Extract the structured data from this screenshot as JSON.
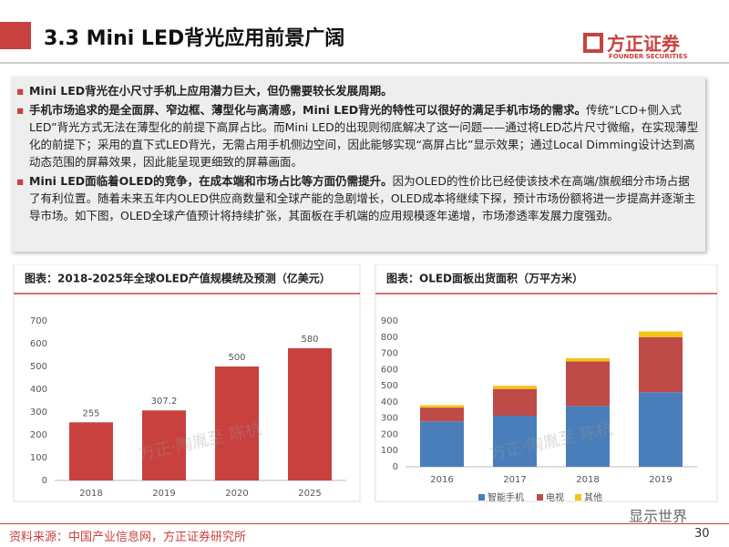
{
  "header": {
    "title": "3.3 Mini LED背光应用前景广阔",
    "logo": "方正证券",
    "logo_sub": "FOUNDER SECURITIES"
  },
  "bullets": [
    {
      "bold": "Mini LED背光在小尺寸手机上应用潜力巨大，但仍需要较长发展周期。",
      "text": ""
    },
    {
      "bold": "手机市场追求的是全面屏、窄边框、薄型化与高清感，Mini LED背光的特性可以很好的满足手机市场的需求。",
      "text": "传统“LCD+侧入式LED”背光方式无法在薄型化的前提下高屏占比。而Mini LED的出现则彻底解决了这一问题——通过将LED芯片尺寸微缩，在实现薄型化的前提下；采用的直下式LED背光，无需占用手机侧边空间，因此能够实现“高屏占比”显示效果；通过Local Dimming设计达到高动态范围的屏幕效果，因此能呈现更细致的屏幕画面。"
    },
    {
      "bold": "Mini LED面临着OLED的竞争，在成本端和市场占比等方面仍需提升。",
      "text": "因为OLED的性价比已经使该技术在高端/旗舰细分市场占据了有利位置。随着未来五年内OLED供应商数量和全球产能的急剧增长，OLED成本将继续下探，预计市场份额将进一步提高并逐渐主导市场。如下图，OLED全球产值预计将持续扩张，其面板在手机端的应用规模逐年递增，市场渗透率发展力度强劲。"
    }
  ],
  "chart_data": [
    {
      "type": "bar",
      "title": "图表：2018-2025年全球OLED产值规模统及预测（亿美元）",
      "categories": [
        "2018",
        "2019",
        "2020",
        "2025"
      ],
      "values": [
        255,
        307.2,
        500,
        580
      ],
      "color": "#c9413f",
      "ylim": [
        0,
        700
      ],
      "yticks": [
        0,
        100,
        200,
        300,
        400,
        500,
        600,
        700
      ],
      "grid": false,
      "watermark": "方正·陶胤至 陈杭"
    },
    {
      "type": "stacked_bar",
      "title": "图表：OLED面板出货面积（万平方米）",
      "categories": [
        "2016",
        "2017",
        "2018",
        "2019"
      ],
      "series": [
        {
          "name": "智能手机",
          "color": "#4a7ebb",
          "values": [
            280,
            315,
            375,
            460
          ]
        },
        {
          "name": "电视",
          "color": "#be4b48",
          "values": [
            85,
            165,
            275,
            340
          ]
        },
        {
          "name": "其他",
          "color": "#f5c518",
          "values": [
            15,
            20,
            20,
            35
          ]
        }
      ],
      "ylim": [
        0,
        900
      ],
      "yticks": [
        0,
        100,
        200,
        300,
        400,
        500,
        600,
        700,
        800,
        900
      ],
      "grid": false,
      "legend": "bottom",
      "watermark": "方正·陶胤至 陈杭"
    }
  ],
  "footer": {
    "source": "资料来源：中国产业信息网，方正证券研究所",
    "page": "30",
    "brand": "显示世界"
  }
}
